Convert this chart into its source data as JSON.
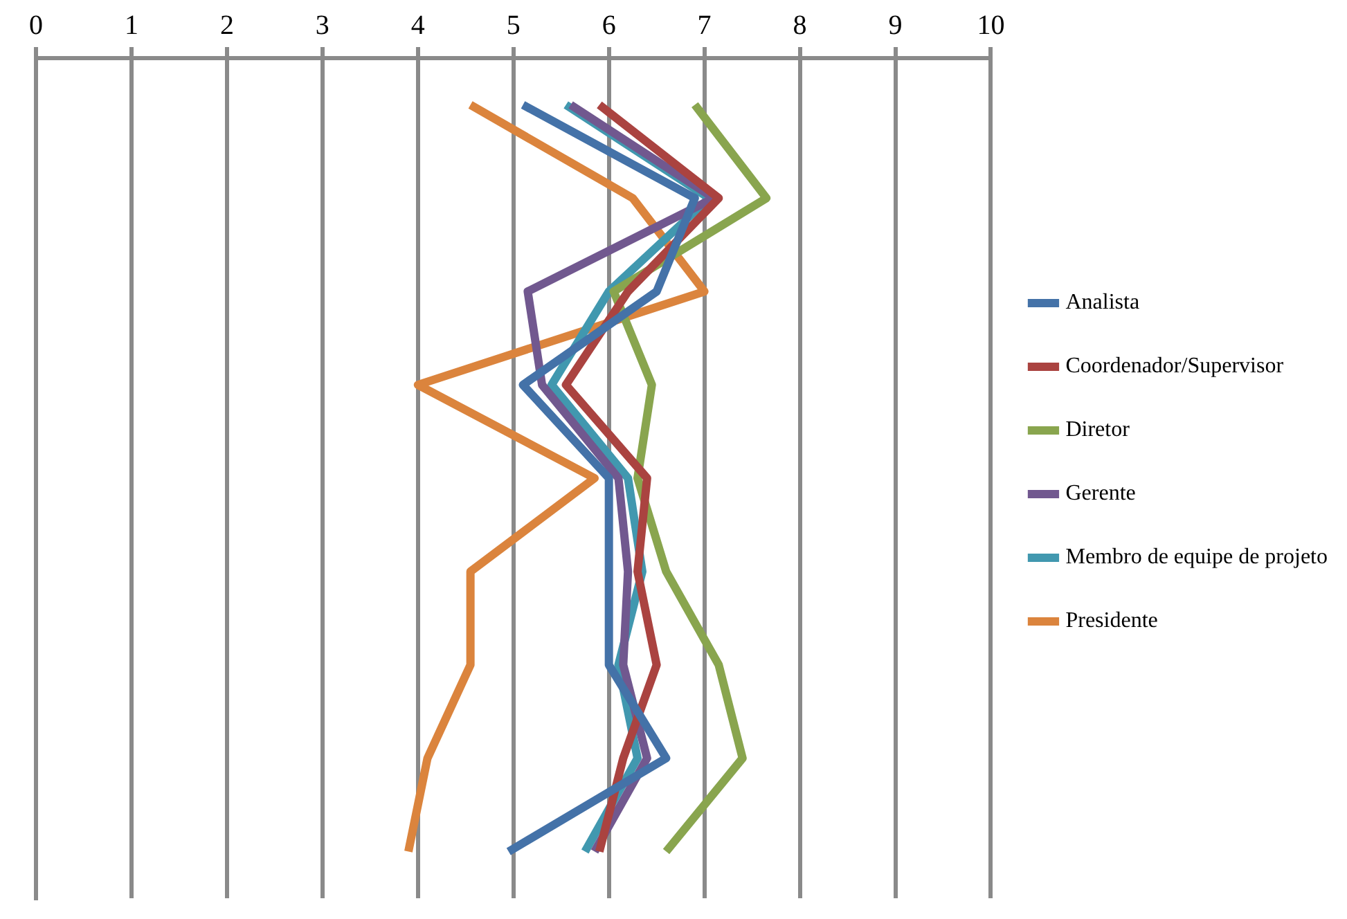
{
  "chart_data": {
    "type": "line",
    "orientation": "horizontal",
    "categories": [
      null,
      null,
      null,
      null,
      null,
      null,
      null,
      null,
      null
    ],
    "xlim": [
      0,
      10
    ],
    "xticks": [
      0,
      1,
      2,
      3,
      4,
      5,
      6,
      7,
      8,
      9,
      10
    ],
    "grid": "x",
    "legend": "right",
    "marker": "none",
    "line_style": "solid",
    "series": [
      {
        "name": "Analista",
        "color": "#4472a8",
        "values": [
          5.1,
          6.9,
          6.5,
          5.1,
          6.0,
          6.0,
          6.0,
          6.6,
          4.95
        ]
      },
      {
        "name": "Coordenador/Supervisor",
        "color": "#aa4340",
        "values": [
          5.9,
          7.15,
          6.2,
          5.55,
          6.4,
          6.3,
          6.5,
          6.15,
          5.9
        ]
      },
      {
        "name": "Diretor",
        "color": "#89a54e",
        "values": [
          6.9,
          7.65,
          6.05,
          6.45,
          6.3,
          6.6,
          7.15,
          7.4,
          6.6
        ]
      },
      {
        "name": "Gerente",
        "color": "#71588f",
        "values": [
          5.6,
          7.1,
          5.15,
          5.3,
          6.1,
          6.2,
          6.15,
          6.4,
          5.85
        ]
      },
      {
        "name": "Membro de equipe de projeto",
        "color": "#4198af",
        "values": [
          5.55,
          7.05,
          6.0,
          5.4,
          6.2,
          6.35,
          6.1,
          6.3,
          5.75
        ]
      },
      {
        "name": "Presidente",
        "color": "#db843d",
        "values": [
          4.55,
          6.25,
          7.0,
          4.0,
          5.85,
          4.55,
          4.55,
          4.1,
          3.9
        ]
      }
    ]
  }
}
